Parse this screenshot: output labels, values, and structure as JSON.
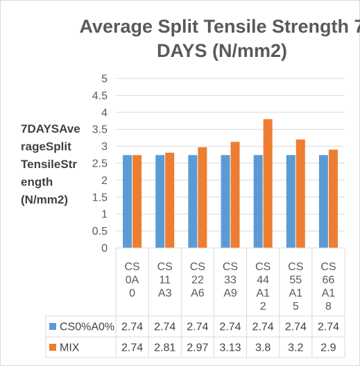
{
  "chart_data": {
    "type": "bar",
    "title_lines": [
      "Average Split Tensile Strength 7",
      "DAYS (N/mm2)"
    ],
    "ylabel_lines": [
      "7DAYSAve",
      "rageSplit",
      "TensileStr",
      "ength",
      "(N/mm2)"
    ],
    "xlabel": "",
    "ylim": [
      0,
      5
    ],
    "yticks": [
      "0",
      "0.5",
      "1",
      "1.5",
      "2",
      "2.5",
      "3",
      "3.5",
      "4",
      "4.5",
      "5"
    ],
    "grid": true,
    "legend": "data-table",
    "categories": [
      "CS0A0",
      "CS11A3",
      "CS22A6",
      "CS33A9",
      "CS44A12",
      "CS55A15",
      "CS66A18"
    ],
    "category_label_lines": [
      [
        "CS",
        "0A",
        "0"
      ],
      [
        "CS",
        "11",
        "A3"
      ],
      [
        "CS",
        "22",
        "A6"
      ],
      [
        "CS",
        "33",
        "A9"
      ],
      [
        "CS",
        "44",
        "A1",
        "2"
      ],
      [
        "CS",
        "55",
        "A1",
        "5"
      ],
      [
        "CS",
        "66",
        "A1",
        "8"
      ]
    ],
    "series": [
      {
        "name": "CS0%A0%",
        "color": "#5b9bd5",
        "values": [
          2.74,
          2.74,
          2.74,
          2.74,
          2.74,
          2.74,
          2.74
        ],
        "table_values": [
          "2.74",
          "2.74",
          "2.74",
          "2.74",
          "2.74",
          "2.74",
          "2.74"
        ]
      },
      {
        "name": "MIX",
        "color": "#ed7d31",
        "values": [
          2.74,
          2.81,
          2.97,
          3.13,
          3.8,
          3.2,
          2.9
        ],
        "table_values": [
          "2.74",
          "2.81",
          "2.97",
          "3.13",
          "3.8",
          "3.2",
          "2.9"
        ]
      }
    ]
  }
}
